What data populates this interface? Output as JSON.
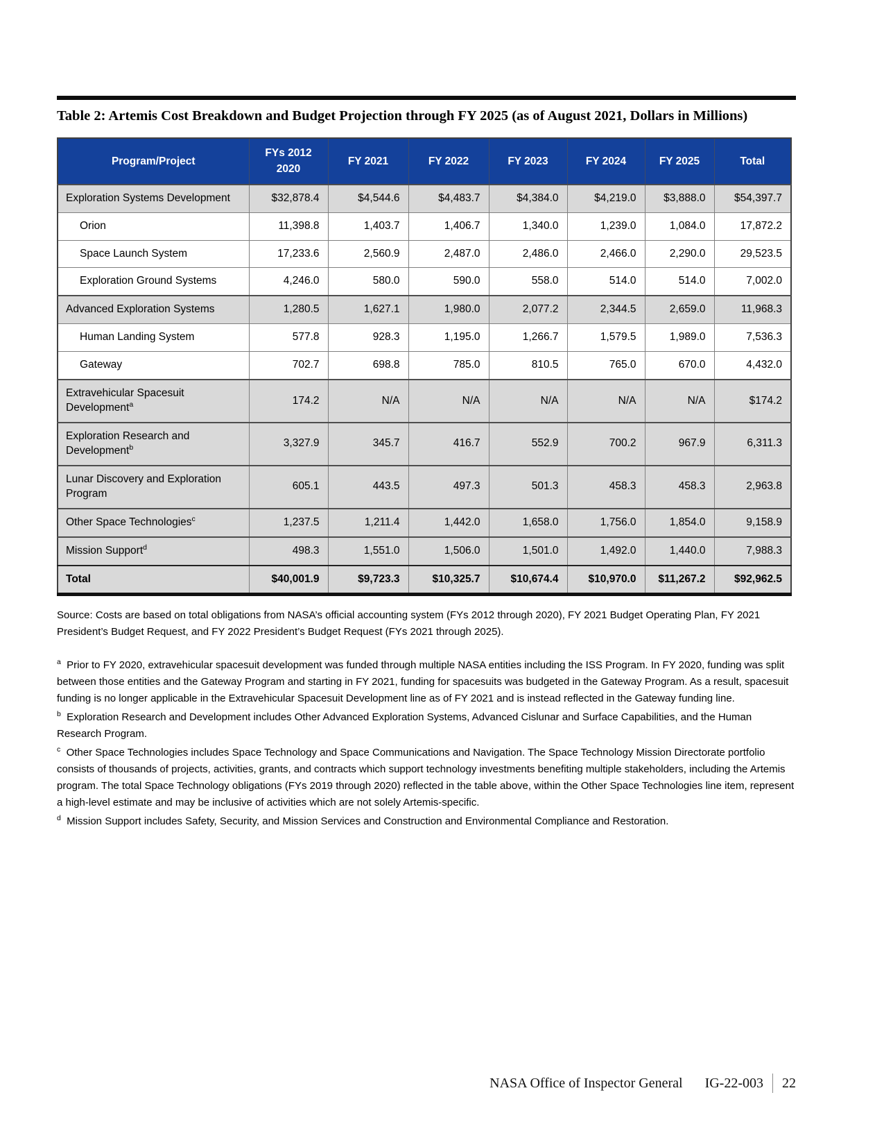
{
  "page": {
    "title": "Table 2:  Artemis Cost Breakdown and Budget Projection through FY 2025 (as of August 2021, Dollars in Millions)"
  },
  "colors": {
    "header_bg": "#14419B",
    "shaded_row_bg": "#D9D9D9",
    "header_text": "#FFFFFF"
  },
  "table": {
    "columns": [
      {
        "label": "Program/Project"
      },
      {
        "label": "FYs 2012",
        "label2": "2020"
      },
      {
        "label": "FY 2021"
      },
      {
        "label": "FY 2022"
      },
      {
        "label": "FY 2023"
      },
      {
        "label": "FY 2024"
      },
      {
        "label": "FY 2025"
      },
      {
        "label": "Total"
      }
    ],
    "rows": [
      {
        "label": "Exploration Systems Development",
        "sup": "",
        "indent": false,
        "shaded": true,
        "bold": false,
        "values": [
          "$32,878.4",
          "$4,544.6",
          "$4,483.7",
          "$4,384.0",
          "$4,219.0",
          "$3,888.0",
          "$54,397.7"
        ]
      },
      {
        "label": "Orion",
        "sup": "",
        "indent": true,
        "shaded": false,
        "bold": false,
        "values": [
          "11,398.8",
          "1,403.7",
          "1,406.7",
          "1,340.0",
          "1,239.0",
          "1,084.0",
          "17,872.2"
        ]
      },
      {
        "label": "Space Launch System",
        "sup": "",
        "indent": true,
        "shaded": false,
        "bold": false,
        "values": [
          "17,233.6",
          "2,560.9",
          "2,487.0",
          "2,486.0",
          "2,466.0",
          "2,290.0",
          "29,523.5"
        ]
      },
      {
        "label": "Exploration Ground Systems",
        "sup": "",
        "indent": true,
        "shaded": false,
        "bold": false,
        "values": [
          "4,246.0",
          "580.0",
          "590.0",
          "558.0",
          "514.0",
          "514.0",
          "7,002.0"
        ]
      },
      {
        "label": "Advanced Exploration Systems",
        "sup": "",
        "indent": false,
        "shaded": true,
        "bold": false,
        "values": [
          "1,280.5",
          "1,627.1",
          "1,980.0",
          "2,077.2",
          "2,344.5",
          "2,659.0",
          "11,968.3"
        ]
      },
      {
        "label": "Human Landing System",
        "sup": "",
        "indent": true,
        "shaded": false,
        "bold": false,
        "values": [
          "577.8",
          "928.3",
          "1,195.0",
          "1,266.7",
          "1,579.5",
          "1,989.0",
          "7,536.3"
        ]
      },
      {
        "label": "Gateway",
        "sup": "",
        "indent": true,
        "shaded": false,
        "bold": false,
        "values": [
          "702.7",
          "698.8",
          "785.0",
          "810.5",
          "765.0",
          "670.0",
          "4,432.0"
        ]
      },
      {
        "label": "Extravehicular Spacesuit Development",
        "sup": "a",
        "indent": false,
        "shaded": true,
        "bold": false,
        "values": [
          "174.2",
          "N/A",
          "N/A",
          "N/A",
          "N/A",
          "N/A",
          "$174.2"
        ]
      },
      {
        "label": "Exploration Research and Development",
        "sup": "b",
        "indent": false,
        "shaded": true,
        "bold": false,
        "values": [
          "3,327.9",
          "345.7",
          "416.7",
          "552.9",
          "700.2",
          "967.9",
          "6,311.3"
        ]
      },
      {
        "label": "Lunar Discovery and Exploration Program",
        "sup": "",
        "indent": false,
        "shaded": true,
        "bold": false,
        "values": [
          "605.1",
          "443.5",
          "497.3",
          "501.3",
          "458.3",
          "458.3",
          "2,963.8"
        ]
      },
      {
        "label": "Other Space Technologies",
        "sup": "c",
        "indent": false,
        "shaded": true,
        "bold": false,
        "values": [
          "1,237.5",
          "1,211.4",
          "1,442.0",
          "1,658.0",
          "1,756.0",
          "1,854.0",
          "9,158.9"
        ]
      },
      {
        "label": "Mission Support",
        "sup": "d",
        "indent": false,
        "shaded": true,
        "bold": false,
        "values": [
          "498.3",
          "1,551.0",
          "1,506.0",
          "1,501.0",
          "1,492.0",
          "1,440.0",
          "7,988.3"
        ]
      },
      {
        "label": "Total",
        "sup": "",
        "indent": false,
        "shaded": true,
        "bold": true,
        "values": [
          "$40,001.9",
          "$9,723.3",
          "$10,325.7",
          "$10,674.4",
          "$10,970.0",
          "$11,267.2",
          "$92,962.5"
        ]
      }
    ]
  },
  "source": "Source:  Costs are based on total obligations from NASA’s official accounting system (FYs 2012 through 2020), FY 2021 Budget Operating Plan, FY 2021 President’s Budget Request, and FY 2022 President’s Budget Request (FYs 2021 through 2025).",
  "footnotes": [
    {
      "marker": "a",
      "text": "Prior to FY 2020, extravehicular spacesuit development was funded through multiple NASA entities including the ISS Program.  In FY 2020, funding was split between those entities and the Gateway Program and starting in FY 2021, funding for spacesuits was budgeted in the Gateway Program.  As a result, spacesuit funding is no longer applicable in the Extravehicular Spacesuit Development line as of FY 2021 and is instead reflected in the Gateway funding line."
    },
    {
      "marker": "b",
      "text": "Exploration Research and Development includes Other Advanced Exploration Systems, Advanced Cislunar and Surface Capabilities, and the Human Research Program."
    },
    {
      "marker": "c",
      "text": "Other Space Technologies includes Space Technology and Space Communications and Navigation.  The Space Technology Mission Directorate portfolio consists of thousands of projects, activities, grants, and contracts which support technology investments benefiting multiple stakeholders, including the Artemis program.  The total Space Technology obligations (FYs 2019 through 2020) reflected in the table above, within the Other Space Technologies line item, represent a high-level estimate and may be inclusive of activities which are not solely Artemis-specific."
    },
    {
      "marker": "d",
      "text": "Mission Support includes Safety, Security, and Mission Services and Construction and Environmental Compliance and Restoration."
    }
  ],
  "footer": {
    "org": "NASA Office of Inspector General",
    "report_id": "IG-22-003",
    "page_number": "22"
  }
}
